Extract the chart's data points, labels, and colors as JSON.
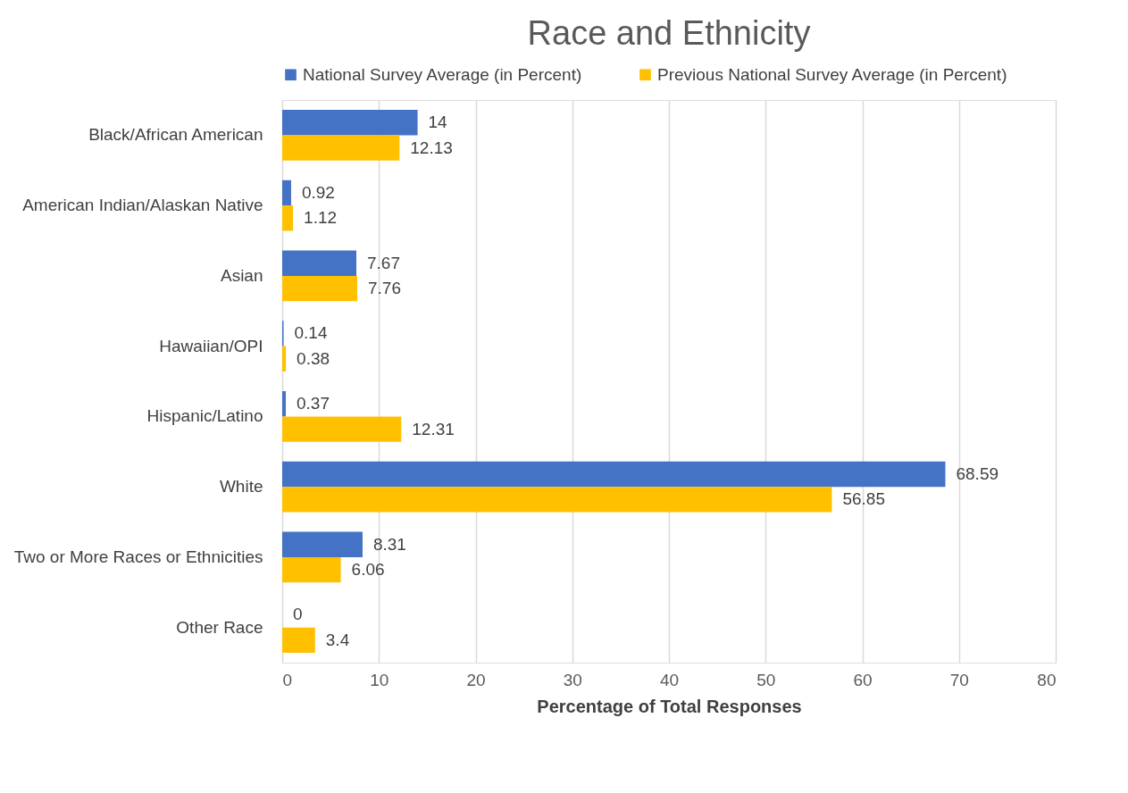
{
  "chart_data": {
    "type": "bar",
    "orientation": "horizontal",
    "title": "Race and Ethnicity",
    "xlabel": "Percentage of Total Responses",
    "categories": [
      "Black/African American",
      "American Indian/Alaskan Native",
      "Asian",
      "Hawaiian/OPI",
      "Hispanic/Latino",
      "White",
      "Two or More Races or Ethnicities",
      "Other Race"
    ],
    "series": [
      {
        "name": "National Survey Average (in Percent)",
        "color": "#4472c4",
        "values": [
          14,
          0.92,
          7.67,
          0.14,
          0.37,
          68.59,
          8.31,
          0
        ]
      },
      {
        "name": "Previous National Survey Average (in Percent)",
        "color": "#ffc000",
        "values": [
          12.13,
          1.12,
          7.76,
          0.38,
          12.31,
          56.85,
          6.06,
          3.4
        ]
      }
    ],
    "xlim": [
      0,
      80
    ],
    "xticks": [
      0,
      10,
      20,
      30,
      40,
      50,
      60,
      70,
      80
    ],
    "grid": "x",
    "legend": "top",
    "data_labels": true
  }
}
